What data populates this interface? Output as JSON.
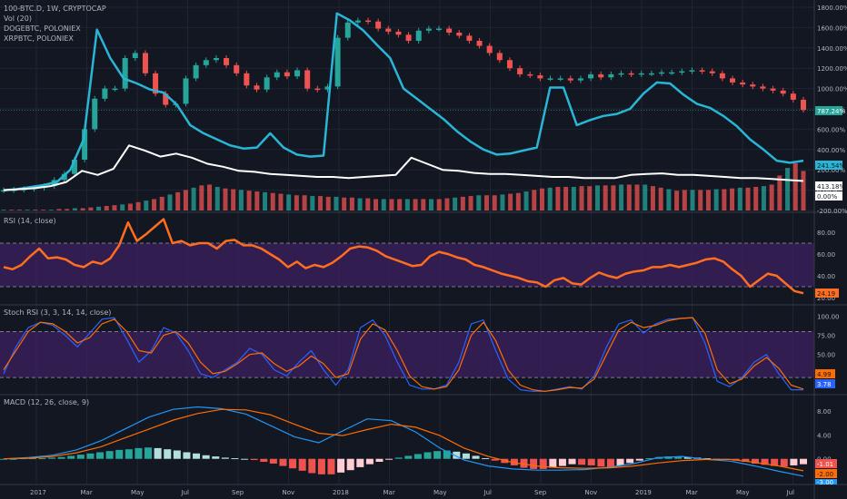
{
  "legend": {
    "main": "100-BTC.D, 1W, CRYPTOCAP",
    "vol": "Vol (20)",
    "series2": "DOGEBTC, POLONIEX",
    "series3": "XRPBTC, POLONIEX",
    "rsi": "RSI (14, close)",
    "stoch": "Stoch RSI (3, 3, 14, 14, close)",
    "macd": "MACD (12, 26, close, 9)"
  },
  "colors": {
    "bg": "#131722",
    "up": "#26a69a",
    "down": "#ef5350",
    "doge": "#29b6d6",
    "xrp": "#ffffff",
    "rsi": "#ff6d1f",
    "band": "#3b1f5e",
    "stoch_k": "#2962ff",
    "stoch_d": "#ff6d00",
    "macd_line": "#2196f3",
    "signal_line": "#ff6d00"
  },
  "badges": {
    "main_last": "787.24%",
    "doge_last": "241.54%",
    "xrp_last": "413.18%",
    "zero": "0.00%",
    "rsi_last": "24.19",
    "stoch_d_last": "4.99",
    "stoch_k_last": "3.78",
    "macd_a": "-1.01",
    "macd_b": "-2.00",
    "macd_c": "-3.00"
  },
  "chart_data": [
    {
      "type": "line",
      "title": "100-BTC.D, 1W, CRYPTOCAP",
      "x_labels": [
        "2017",
        "Mar",
        "May",
        "Jul",
        "Sep",
        "Nov",
        "2018",
        "Mar",
        "May",
        "Jul",
        "Sep",
        "Nov",
        "2019",
        "Mar",
        "May",
        "Jul"
      ],
      "y_ticks": [
        "1800.00%",
        "1600.00%",
        "1400.00%",
        "1200.00%",
        "1000.00%",
        "800.00%",
        "600.00%",
        "400.00%",
        "200.00%",
        "0.00%",
        "-200.00%"
      ],
      "ylim": [
        -200,
        1800
      ],
      "series": [
        {
          "name": "100-BTC.D, 1W, CRYPTOCAP",
          "style": "candles",
          "values": [
            0,
            5,
            12,
            22,
            40,
            100,
            160,
            300,
            600,
            900,
            1000,
            1000,
            1300,
            1350,
            1150,
            950,
            840,
            850,
            1100,
            1230,
            1280,
            1300,
            1230,
            1150,
            1030,
            990,
            1110,
            1160,
            1120,
            1180,
            1000,
            990,
            1020,
            1500,
            1650,
            1670,
            1660,
            1590,
            1560,
            1530,
            1470,
            1570,
            1590,
            1590,
            1550,
            1520,
            1470,
            1420,
            1350,
            1280,
            1200,
            1140,
            1130,
            1100,
            1100,
            1100,
            1080,
            1100,
            1140,
            1110,
            1140,
            1150,
            1140,
            1150,
            1150,
            1160,
            1160,
            1170,
            1180,
            1170,
            1150,
            1100,
            1060,
            1040,
            1020,
            1000,
            980,
            950,
            890,
            790
          ]
        },
        {
          "name": "DOGEBTC, POLONIEX",
          "values": [
            0,
            10,
            30,
            50,
            80,
            200,
            500,
            1580,
            1300,
            1100,
            1050,
            990,
            960,
            840,
            640,
            560,
            500,
            440,
            410,
            420,
            560,
            420,
            350,
            330,
            340,
            1740,
            1670,
            1570,
            1430,
            1300,
            1000,
            900,
            800,
            700,
            580,
            480,
            400,
            350,
            360,
            390,
            420,
            1010,
            1010,
            640,
            690,
            730,
            750,
            800,
            950,
            1060,
            1050,
            940,
            850,
            810,
            730,
            630,
            500,
            400,
            290,
            270,
            290
          ]
        },
        {
          "name": "XRPBTC, POLONIEX",
          "values": [
            0,
            10,
            20,
            40,
            80,
            190,
            150,
            210,
            440,
            390,
            330,
            360,
            320,
            260,
            230,
            190,
            180,
            160,
            150,
            140,
            130,
            130,
            120,
            130,
            140,
            150,
            320,
            260,
            200,
            190,
            170,
            160,
            160,
            150,
            140,
            130,
            130,
            120,
            120,
            120,
            150,
            160,
            165,
            150,
            150,
            140,
            130,
            120,
            120,
            110,
            100,
            90
          ]
        }
      ]
    },
    {
      "type": "bar",
      "title": "Vol (20)",
      "values": [
        1,
        1,
        1,
        1,
        1,
        1,
        1,
        2,
        2,
        3,
        3,
        4,
        5,
        6,
        7,
        8,
        9,
        11,
        13,
        15,
        18,
        21,
        24,
        27,
        30,
        33,
        34,
        31,
        29,
        28,
        27,
        26,
        25,
        24,
        23,
        22,
        21,
        20,
        20,
        19,
        19,
        18,
        18,
        17,
        17,
        16,
        16,
        15,
        15,
        15,
        15,
        15,
        15,
        15,
        15,
        15,
        16,
        17,
        18,
        19,
        20,
        20,
        20,
        21,
        22,
        23,
        25,
        27,
        29,
        30,
        31,
        31,
        31,
        32,
        32,
        33,
        33,
        33,
        34,
        34,
        34,
        34,
        32,
        30,
        28,
        26,
        27,
        27,
        27,
        27,
        28,
        28,
        29,
        30,
        30,
        31,
        32,
        34,
        46,
        56,
        62,
        52
      ]
    },
    {
      "type": "line",
      "title": "RSI (14, close)",
      "y_ticks": [
        "80.00",
        "60.00",
        "40.00",
        "20.00"
      ],
      "ylim": [
        15,
        95
      ],
      "levels": [
        70,
        30
      ],
      "series": [
        {
          "name": "RSI (14, close)",
          "values": [
            48,
            46,
            50,
            58,
            65,
            56,
            57,
            55,
            50,
            48,
            53,
            51,
            56,
            68,
            89,
            72,
            78,
            85,
            92,
            70,
            72,
            68,
            70,
            70,
            65,
            72,
            73,
            68,
            68,
            65,
            60,
            55,
            48,
            53,
            47,
            50,
            48,
            52,
            58,
            65,
            67,
            66,
            63,
            58,
            55,
            52,
            49,
            50,
            58,
            62,
            60,
            57,
            55,
            50,
            48,
            45,
            42,
            40,
            38,
            35,
            34,
            30,
            36,
            38,
            33,
            32,
            38,
            43,
            40,
            38,
            42,
            44,
            45,
            48,
            48,
            50,
            48,
            50,
            52,
            55,
            56,
            53,
            46,
            40,
            30,
            36,
            42,
            40,
            33,
            26,
            24
          ]
        }
      ]
    },
    {
      "type": "line",
      "title": "Stoch RSI (3, 3, 14, 14, close)",
      "y_ticks": [
        "100.00",
        "75.00",
        "50.00",
        "25.00"
      ],
      "ylim": [
        0,
        110
      ],
      "levels": [
        80,
        20
      ],
      "series": [
        {
          "name": "K",
          "values": [
            25,
            60,
            85,
            92,
            88,
            75,
            60,
            78,
            96,
            98,
            70,
            40,
            55,
            85,
            78,
            55,
            25,
            20,
            30,
            40,
            58,
            50,
            30,
            22,
            40,
            55,
            30,
            10,
            30,
            85,
            95,
            75,
            40,
            10,
            5,
            5,
            10,
            40,
            90,
            95,
            55,
            18,
            4,
            2,
            2,
            5,
            8,
            5,
            22,
            60,
            90,
            95,
            78,
            90,
            96,
            97,
            98,
            65,
            15,
            8,
            20,
            40,
            50,
            25,
            4,
            4
          ]
        },
        {
          "name": "D",
          "values": [
            30,
            55,
            80,
            92,
            90,
            80,
            65,
            72,
            90,
            96,
            80,
            55,
            52,
            75,
            80,
            65,
            40,
            25,
            28,
            38,
            50,
            52,
            38,
            28,
            35,
            48,
            38,
            20,
            25,
            70,
            90,
            82,
            55,
            22,
            8,
            5,
            8,
            30,
            75,
            92,
            68,
            30,
            10,
            4,
            2,
            4,
            7,
            6,
            18,
            50,
            82,
            92,
            85,
            88,
            94,
            97,
            98,
            78,
            30,
            12,
            18,
            35,
            46,
            32,
            10,
            5
          ]
        }
      ]
    },
    {
      "type": "bar",
      "title": "MACD (12, 26, close, 9)",
      "y_ticks": [
        "8.00",
        "4.00",
        "0.00"
      ],
      "ylim": [
        -4,
        10
      ],
      "series": [
        {
          "name": "MACD",
          "values": [
            0,
            0.2,
            0.6,
            1.5,
            3,
            5,
            7,
            8.3,
            8.7,
            8.4,
            7.5,
            5.6,
            3.7,
            2.7,
            4.7,
            6.7,
            6.4,
            4.5,
            1.8,
            -0.2,
            -1.2,
            -1.7,
            -1.9,
            -1.9,
            -1.8,
            -1.4,
            -0.8,
            0.2,
            0.4,
            -0.1,
            -0.4,
            -1.2,
            -2.1,
            -2.9
          ]
        },
        {
          "name": "Signal",
          "values": [
            0,
            0.1,
            0.4,
            1,
            2,
            3.5,
            5,
            6.5,
            7.6,
            8.3,
            8.2,
            7.4,
            5.8,
            4.3,
            3.9,
            4.9,
            5.8,
            5.3,
            3.9,
            1.8,
            0.4,
            -0.6,
            -1.2,
            -1.5,
            -1.6,
            -1.5,
            -1.2,
            -0.7,
            -0.3,
            -0.1,
            -0.1,
            -0.6,
            -1.2,
            -2
          ]
        },
        {
          "name": "Histogram",
          "values": [
            0,
            0,
            0.1,
            0.1,
            0.1,
            0.2,
            0.3,
            0.5,
            0.7,
            0.9,
            1.1,
            1.3,
            1.5,
            1.6,
            1.8,
            1.9,
            1.8,
            1.6,
            1.4,
            1.1,
            0.9,
            0.6,
            0.4,
            0.2,
            0.1,
            0,
            -0.2,
            -0.5,
            -0.8,
            -1.2,
            -1.6,
            -2,
            -2.4,
            -2.6,
            -2.6,
            -2.3,
            -1.9,
            -1.4,
            -0.9,
            -0.5,
            -0.1,
            0.2,
            0.5,
            0.8,
            1.1,
            1.3,
            1.4,
            1.2,
            0.9,
            0.5,
            0.1,
            -0.3,
            -0.7,
            -1.1,
            -1.5,
            -1.7,
            -1.7,
            -1.5,
            -1.2,
            -0.9,
            -1,
            -1.1,
            -1.3,
            -1.4,
            -1.1,
            -0.7,
            -0.3,
            0.1,
            0.3,
            0.4,
            0.4,
            0.3,
            0.2,
            0.1,
            0,
            -0.1,
            -0.3,
            -0.5,
            -0.8,
            -1,
            -1.2,
            -1.3,
            -1.1,
            -0.9
          ]
        }
      ]
    }
  ]
}
